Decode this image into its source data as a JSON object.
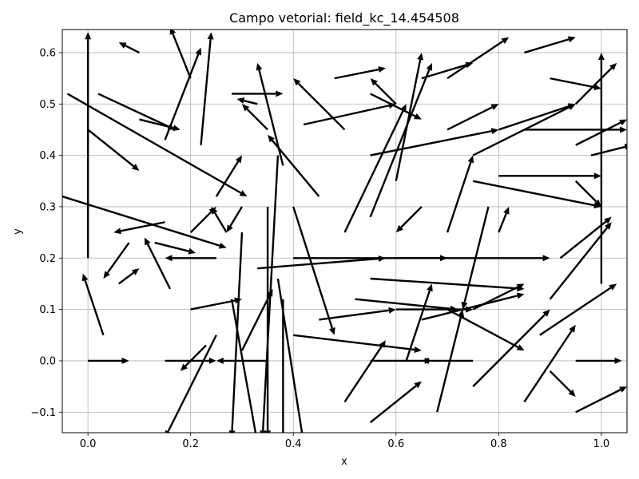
{
  "chart_data": {
    "type": "quiver",
    "title": "Campo vetorial: field_kc_14.454508",
    "xlabel": "x",
    "ylabel": "y",
    "xlim": [
      -0.05,
      1.05
    ],
    "ylim": [
      -0.14,
      0.645
    ],
    "grid": true,
    "xticks": [
      0.0,
      0.2,
      0.4,
      0.6,
      0.8,
      1.0
    ],
    "xtick_labels": [
      "0.0",
      "0.2",
      "0.4",
      "0.6",
      "0.8",
      "1.0"
    ],
    "yticks": [
      -0.1,
      0.0,
      0.1,
      0.2,
      0.3,
      0.4,
      0.5,
      0.6
    ],
    "ytick_labels": [
      "−0.1",
      "0.0",
      "0.1",
      "0.2",
      "0.3",
      "0.4",
      "0.5",
      "0.6"
    ],
    "arrow_color": "#000000",
    "vectors": [
      {
        "x": 0.0,
        "y": 0.0,
        "u": 0.08,
        "v": 0.0
      },
      {
        "x": 0.15,
        "y": 0.0,
        "u": 0.1,
        "v": 0.0
      },
      {
        "x": 0.35,
        "y": 0.0,
        "u": -0.1,
        "v": 0.0
      },
      {
        "x": 0.55,
        "y": 0.0,
        "u": 0.12,
        "v": 0.0
      },
      {
        "x": 0.75,
        "y": 0.0,
        "u": -0.1,
        "v": 0.0
      },
      {
        "x": 0.95,
        "y": 0.0,
        "u": 0.09,
        "v": 0.0
      },
      {
        "x": 1.0,
        "y": 0.15,
        "u": 0.0,
        "v": 0.45
      },
      {
        "x": 0.0,
        "y": 0.2,
        "u": 0.0,
        "v": 0.44
      },
      {
        "x": 0.02,
        "y": 0.52,
        "u": 0.15,
        "v": -0.07
      },
      {
        "x": -0.04,
        "y": 0.52,
        "u": 0.35,
        "v": -0.2
      },
      {
        "x": -0.05,
        "y": 0.32,
        "u": 0.32,
        "v": -0.1
      },
      {
        "x": 0.0,
        "y": 0.45,
        "u": 0.1,
        "v": -0.08
      },
      {
        "x": 0.1,
        "y": 0.6,
        "u": -0.04,
        "v": 0.02
      },
      {
        "x": 0.1,
        "y": 0.47,
        "u": 0.08,
        "v": -0.02
      },
      {
        "x": 0.06,
        "y": 0.15,
        "u": 0.04,
        "v": 0.03
      },
      {
        "x": 0.03,
        "y": 0.05,
        "u": -0.04,
        "v": 0.12
      },
      {
        "x": 0.08,
        "y": 0.23,
        "u": -0.05,
        "v": -0.07
      },
      {
        "x": 0.15,
        "y": 0.27,
        "u": -0.1,
        "v": -0.02
      },
      {
        "x": 0.16,
        "y": 0.14,
        "u": -0.05,
        "v": 0.1
      },
      {
        "x": 0.13,
        "y": 0.23,
        "u": 0.08,
        "v": -0.02
      },
      {
        "x": 0.2,
        "y": 0.25,
        "u": 0.05,
        "v": 0.05
      },
      {
        "x": 0.25,
        "y": 0.2,
        "u": -0.1,
        "v": 0.0
      },
      {
        "x": 0.2,
        "y": 0.1,
        "u": 0.1,
        "v": 0.02
      },
      {
        "x": 0.23,
        "y": 0.03,
        "u": -0.05,
        "v": -0.05
      },
      {
        "x": 0.27,
        "y": 0.25,
        "u": -0.03,
        "v": 0.05
      },
      {
        "x": 0.3,
        "y": 0.3,
        "u": -0.03,
        "v": -0.05
      },
      {
        "x": 0.22,
        "y": 0.42,
        "u": 0.02,
        "v": 0.22
      },
      {
        "x": 0.15,
        "y": 0.43,
        "u": 0.07,
        "v": 0.18
      },
      {
        "x": 0.2,
        "y": 0.55,
        "u": -0.04,
        "v": 0.1
      },
      {
        "x": 0.28,
        "y": 0.52,
        "u": 0.1,
        "v": 0.0
      },
      {
        "x": 0.35,
        "y": 0.45,
        "u": -0.05,
        "v": 0.05
      },
      {
        "x": 0.25,
        "y": 0.32,
        "u": 0.05,
        "v": 0.08
      },
      {
        "x": 0.33,
        "y": 0.5,
        "u": -0.04,
        "v": 0.01
      },
      {
        "x": 0.38,
        "y": 0.38,
        "u": -0.05,
        "v": 0.2
      },
      {
        "x": 0.33,
        "y": 0.18,
        "u": 0.25,
        "v": 0.02
      },
      {
        "x": 0.4,
        "y": 0.2,
        "u": 0.3,
        "v": 0.0
      },
      {
        "x": 0.37,
        "y": 0.16,
        "u": 0.05,
        "v": -0.32
      },
      {
        "x": 0.35,
        "y": 0.3,
        "u": 0.0,
        "v": -0.45
      },
      {
        "x": 0.37,
        "y": 0.4,
        "u": -0.03,
        "v": -0.55
      },
      {
        "x": 0.38,
        "y": 0.12,
        "u": 0.0,
        "v": -0.3
      },
      {
        "x": 0.3,
        "y": 0.25,
        "u": -0.02,
        "v": -0.4
      },
      {
        "x": 0.28,
        "y": 0.12,
        "u": 0.05,
        "v": -0.28
      },
      {
        "x": 0.25,
        "y": 0.05,
        "u": -0.1,
        "v": -0.2
      },
      {
        "x": 0.3,
        "y": 0.02,
        "u": 0.06,
        "v": 0.12
      },
      {
        "x": 0.4,
        "y": 0.05,
        "u": 0.25,
        "v": -0.03
      },
      {
        "x": 0.45,
        "y": 0.08,
        "u": 0.15,
        "v": 0.02
      },
      {
        "x": 0.4,
        "y": 0.3,
        "u": 0.08,
        "v": -0.25
      },
      {
        "x": 0.45,
        "y": 0.32,
        "u": -0.1,
        "v": 0.12
      },
      {
        "x": 0.42,
        "y": 0.46,
        "u": 0.18,
        "v": 0.04
      },
      {
        "x": 0.5,
        "y": 0.25,
        "u": 0.12,
        "v": 0.25
      },
      {
        "x": 0.55,
        "y": 0.28,
        "u": 0.12,
        "v": 0.3
      },
      {
        "x": 0.6,
        "y": 0.35,
        "u": 0.05,
        "v": 0.25
      },
      {
        "x": 0.55,
        "y": 0.4,
        "u": 0.25,
        "v": 0.05
      },
      {
        "x": 0.5,
        "y": 0.45,
        "u": -0.1,
        "v": 0.1
      },
      {
        "x": 0.48,
        "y": 0.55,
        "u": 0.1,
        "v": 0.02
      },
      {
        "x": 0.55,
        "y": 0.52,
        "u": 0.1,
        "v": -0.05
      },
      {
        "x": 0.6,
        "y": 0.5,
        "u": -0.05,
        "v": 0.05
      },
      {
        "x": 0.65,
        "y": 0.55,
        "u": 0.1,
        "v": 0.03
      },
      {
        "x": 0.7,
        "y": 0.55,
        "u": 0.12,
        "v": 0.08
      },
      {
        "x": 0.7,
        "y": 0.45,
        "u": 0.1,
        "v": 0.05
      },
      {
        "x": 0.75,
        "y": 0.4,
        "u": 0.2,
        "v": 0.1
      },
      {
        "x": 0.8,
        "y": 0.45,
        "u": 0.15,
        "v": 0.05
      },
      {
        "x": 0.85,
        "y": 0.45,
        "u": 0.2,
        "v": 0.0
      },
      {
        "x": 0.8,
        "y": 0.36,
        "u": 0.2,
        "v": 0.0
      },
      {
        "x": 0.75,
        "y": 0.35,
        "u": 0.25,
        "v": -0.05
      },
      {
        "x": 0.78,
        "y": 0.3,
        "u": -0.05,
        "v": -0.2
      },
      {
        "x": 0.8,
        "y": 0.25,
        "u": 0.02,
        "v": 0.05
      },
      {
        "x": 0.7,
        "y": 0.25,
        "u": 0.05,
        "v": 0.15
      },
      {
        "x": 0.65,
        "y": 0.3,
        "u": -0.05,
        "v": -0.05
      },
      {
        "x": 0.6,
        "y": 0.2,
        "u": 0.3,
        "v": 0.0
      },
      {
        "x": 0.55,
        "y": 0.16,
        "u": 0.3,
        "v": -0.02
      },
      {
        "x": 0.52,
        "y": 0.12,
        "u": 0.2,
        "v": -0.02
      },
      {
        "x": 0.6,
        "y": 0.1,
        "u": 0.15,
        "v": 0.0
      },
      {
        "x": 0.65,
        "y": 0.08,
        "u": 0.2,
        "v": 0.05
      },
      {
        "x": 0.7,
        "y": 0.1,
        "u": 0.15,
        "v": -0.08
      },
      {
        "x": 0.75,
        "y": 0.1,
        "u": 0.1,
        "v": 0.05
      },
      {
        "x": 0.62,
        "y": 0.0,
        "u": 0.05,
        "v": 0.15
      },
      {
        "x": 0.5,
        "y": -0.08,
        "u": 0.08,
        "v": 0.12
      },
      {
        "x": 0.55,
        "y": -0.12,
        "u": 0.1,
        "v": 0.08
      },
      {
        "x": 0.68,
        "y": -0.1,
        "u": 0.05,
        "v": 0.2
      },
      {
        "x": 0.75,
        "y": -0.05,
        "u": 0.15,
        "v": 0.15
      },
      {
        "x": 0.85,
        "y": -0.08,
        "u": 0.1,
        "v": 0.15
      },
      {
        "x": 0.88,
        "y": 0.05,
        "u": 0.15,
        "v": 0.1
      },
      {
        "x": 0.9,
        "y": 0.12,
        "u": 0.12,
        "v": 0.15
      },
      {
        "x": 0.92,
        "y": 0.2,
        "u": 0.1,
        "v": 0.08
      },
      {
        "x": 0.95,
        "y": 0.35,
        "u": 0.05,
        "v": -0.05
      },
      {
        "x": 0.95,
        "y": 0.42,
        "u": 0.1,
        "v": 0.05
      },
      {
        "x": 0.95,
        "y": 0.5,
        "u": 0.08,
        "v": 0.08
      },
      {
        "x": 0.98,
        "y": 0.4,
        "u": 0.08,
        "v": 0.02
      },
      {
        "x": 0.9,
        "y": 0.55,
        "u": 0.1,
        "v": -0.02
      },
      {
        "x": 0.85,
        "y": 0.6,
        "u": 0.1,
        "v": 0.03
      },
      {
        "x": 0.9,
        "y": -0.02,
        "u": 0.05,
        "v": -0.05
      },
      {
        "x": 0.95,
        "y": -0.1,
        "u": 0.1,
        "v": 0.05
      }
    ]
  }
}
